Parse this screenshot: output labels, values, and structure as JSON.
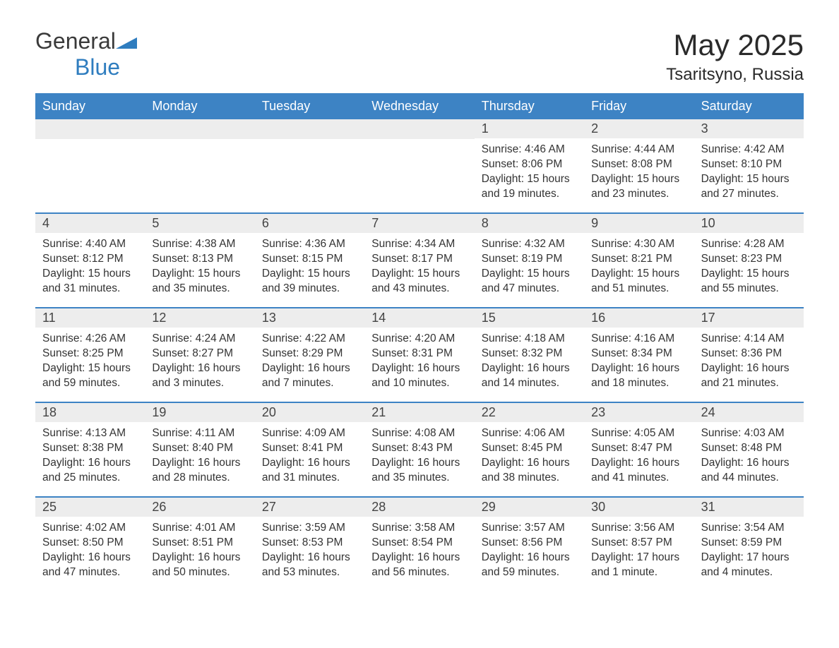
{
  "logo": {
    "text1": "General",
    "text2": "Blue"
  },
  "title": "May 2025",
  "location": "Tsaritsyno, Russia",
  "colors": {
    "header_bg": "#3d83c4",
    "header_text": "#ffffff",
    "daynum_bg": "#ededed",
    "border": "#3d83c4",
    "text": "#333333",
    "logo_blue": "#2f7dbf"
  },
  "dow": [
    "Sunday",
    "Monday",
    "Tuesday",
    "Wednesday",
    "Thursday",
    "Friday",
    "Saturday"
  ],
  "weeks": [
    [
      {
        "empty": true
      },
      {
        "empty": true
      },
      {
        "empty": true
      },
      {
        "empty": true
      },
      {
        "day": "1",
        "sunrise": "Sunrise: 4:46 AM",
        "sunset": "Sunset: 8:06 PM",
        "daylight": "Daylight: 15 hours and 19 minutes."
      },
      {
        "day": "2",
        "sunrise": "Sunrise: 4:44 AM",
        "sunset": "Sunset: 8:08 PM",
        "daylight": "Daylight: 15 hours and 23 minutes."
      },
      {
        "day": "3",
        "sunrise": "Sunrise: 4:42 AM",
        "sunset": "Sunset: 8:10 PM",
        "daylight": "Daylight: 15 hours and 27 minutes."
      }
    ],
    [
      {
        "day": "4",
        "sunrise": "Sunrise: 4:40 AM",
        "sunset": "Sunset: 8:12 PM",
        "daylight": "Daylight: 15 hours and 31 minutes."
      },
      {
        "day": "5",
        "sunrise": "Sunrise: 4:38 AM",
        "sunset": "Sunset: 8:13 PM",
        "daylight": "Daylight: 15 hours and 35 minutes."
      },
      {
        "day": "6",
        "sunrise": "Sunrise: 4:36 AM",
        "sunset": "Sunset: 8:15 PM",
        "daylight": "Daylight: 15 hours and 39 minutes."
      },
      {
        "day": "7",
        "sunrise": "Sunrise: 4:34 AM",
        "sunset": "Sunset: 8:17 PM",
        "daylight": "Daylight: 15 hours and 43 minutes."
      },
      {
        "day": "8",
        "sunrise": "Sunrise: 4:32 AM",
        "sunset": "Sunset: 8:19 PM",
        "daylight": "Daylight: 15 hours and 47 minutes."
      },
      {
        "day": "9",
        "sunrise": "Sunrise: 4:30 AM",
        "sunset": "Sunset: 8:21 PM",
        "daylight": "Daylight: 15 hours and 51 minutes."
      },
      {
        "day": "10",
        "sunrise": "Sunrise: 4:28 AM",
        "sunset": "Sunset: 8:23 PM",
        "daylight": "Daylight: 15 hours and 55 minutes."
      }
    ],
    [
      {
        "day": "11",
        "sunrise": "Sunrise: 4:26 AM",
        "sunset": "Sunset: 8:25 PM",
        "daylight": "Daylight: 15 hours and 59 minutes."
      },
      {
        "day": "12",
        "sunrise": "Sunrise: 4:24 AM",
        "sunset": "Sunset: 8:27 PM",
        "daylight": "Daylight: 16 hours and 3 minutes."
      },
      {
        "day": "13",
        "sunrise": "Sunrise: 4:22 AM",
        "sunset": "Sunset: 8:29 PM",
        "daylight": "Daylight: 16 hours and 7 minutes."
      },
      {
        "day": "14",
        "sunrise": "Sunrise: 4:20 AM",
        "sunset": "Sunset: 8:31 PM",
        "daylight": "Daylight: 16 hours and 10 minutes."
      },
      {
        "day": "15",
        "sunrise": "Sunrise: 4:18 AM",
        "sunset": "Sunset: 8:32 PM",
        "daylight": "Daylight: 16 hours and 14 minutes."
      },
      {
        "day": "16",
        "sunrise": "Sunrise: 4:16 AM",
        "sunset": "Sunset: 8:34 PM",
        "daylight": "Daylight: 16 hours and 18 minutes."
      },
      {
        "day": "17",
        "sunrise": "Sunrise: 4:14 AM",
        "sunset": "Sunset: 8:36 PM",
        "daylight": "Daylight: 16 hours and 21 minutes."
      }
    ],
    [
      {
        "day": "18",
        "sunrise": "Sunrise: 4:13 AM",
        "sunset": "Sunset: 8:38 PM",
        "daylight": "Daylight: 16 hours and 25 minutes."
      },
      {
        "day": "19",
        "sunrise": "Sunrise: 4:11 AM",
        "sunset": "Sunset: 8:40 PM",
        "daylight": "Daylight: 16 hours and 28 minutes."
      },
      {
        "day": "20",
        "sunrise": "Sunrise: 4:09 AM",
        "sunset": "Sunset: 8:41 PM",
        "daylight": "Daylight: 16 hours and 31 minutes."
      },
      {
        "day": "21",
        "sunrise": "Sunrise: 4:08 AM",
        "sunset": "Sunset: 8:43 PM",
        "daylight": "Daylight: 16 hours and 35 minutes."
      },
      {
        "day": "22",
        "sunrise": "Sunrise: 4:06 AM",
        "sunset": "Sunset: 8:45 PM",
        "daylight": "Daylight: 16 hours and 38 minutes."
      },
      {
        "day": "23",
        "sunrise": "Sunrise: 4:05 AM",
        "sunset": "Sunset: 8:47 PM",
        "daylight": "Daylight: 16 hours and 41 minutes."
      },
      {
        "day": "24",
        "sunrise": "Sunrise: 4:03 AM",
        "sunset": "Sunset: 8:48 PM",
        "daylight": "Daylight: 16 hours and 44 minutes."
      }
    ],
    [
      {
        "day": "25",
        "sunrise": "Sunrise: 4:02 AM",
        "sunset": "Sunset: 8:50 PM",
        "daylight": "Daylight: 16 hours and 47 minutes."
      },
      {
        "day": "26",
        "sunrise": "Sunrise: 4:01 AM",
        "sunset": "Sunset: 8:51 PM",
        "daylight": "Daylight: 16 hours and 50 minutes."
      },
      {
        "day": "27",
        "sunrise": "Sunrise: 3:59 AM",
        "sunset": "Sunset: 8:53 PM",
        "daylight": "Daylight: 16 hours and 53 minutes."
      },
      {
        "day": "28",
        "sunrise": "Sunrise: 3:58 AM",
        "sunset": "Sunset: 8:54 PM",
        "daylight": "Daylight: 16 hours and 56 minutes."
      },
      {
        "day": "29",
        "sunrise": "Sunrise: 3:57 AM",
        "sunset": "Sunset: 8:56 PM",
        "daylight": "Daylight: 16 hours and 59 minutes."
      },
      {
        "day": "30",
        "sunrise": "Sunrise: 3:56 AM",
        "sunset": "Sunset: 8:57 PM",
        "daylight": "Daylight: 17 hours and 1 minute."
      },
      {
        "day": "31",
        "sunrise": "Sunrise: 3:54 AM",
        "sunset": "Sunset: 8:59 PM",
        "daylight": "Daylight: 17 hours and 4 minutes."
      }
    ]
  ]
}
